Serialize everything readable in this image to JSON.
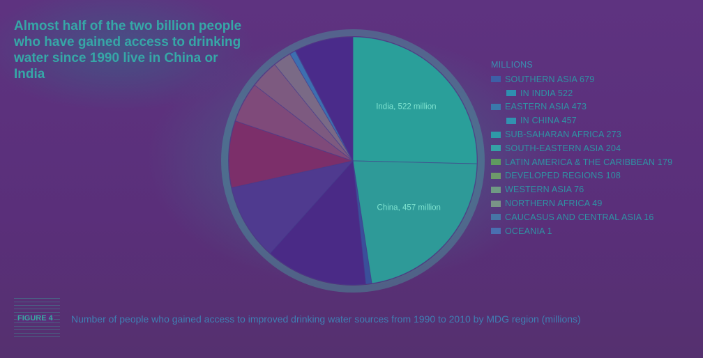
{
  "title": "Almost half of the two billion people who have gained access to drinking water since 1990 live in China or India",
  "figure_label": "FIGURE 4",
  "caption": "Number of people who gained access to improved drinking water sources from 1990 to 2010 by MDG region (millions)",
  "chart_data": {
    "type": "pie",
    "legend_title": "MILLIONS",
    "legend": [
      {
        "label": "SOUTHERN ASIA 679",
        "color": "#3d5fa6",
        "sub": false
      },
      {
        "label": "IN INDIA 522",
        "color": "#2f8fb0",
        "sub": true
      },
      {
        "label": "EASTERN ASIA 473",
        "color": "#3a78ab",
        "sub": false
      },
      {
        "label": "IN CHINA 457",
        "color": "#3192b0",
        "sub": true
      },
      {
        "label": "SUB-SAHARAN AFRICA 273",
        "color": "#2f9aa8",
        "sub": false
      },
      {
        "label": "SOUTH-EASTERN ASIA 204",
        "color": "#35a2a6",
        "sub": false
      },
      {
        "label": "LATIN AMERICA & THE CARIBBEAN 179",
        "color": "#5f9a60",
        "sub": false
      },
      {
        "label": "DEVELOPED REGIONS 108",
        "color": "#6e9a6a",
        "sub": false
      },
      {
        "label": "WESTERN ASIA 76",
        "color": "#6f9a84",
        "sub": false
      },
      {
        "label": "NORTHERN AFRICA 49",
        "color": "#7a9487",
        "sub": false
      },
      {
        "label": "CAUCASUS AND CENTRAL ASIA 16",
        "color": "#4775a6",
        "sub": false
      },
      {
        "label": "OCEANIA 1",
        "color": "#4a6fb0",
        "sub": false
      }
    ],
    "slices": [
      {
        "name": "India",
        "value": 522,
        "color": "#2a9f9a",
        "label": "India, 522 million"
      },
      {
        "name": "China",
        "value": 457,
        "color": "#2e9a98",
        "label": "China, 457 million"
      },
      {
        "name": "Eastern Asia (other)",
        "value": 16,
        "color": "#3a4f9a",
        "label": ""
      },
      {
        "name": "Sub-Saharan Africa",
        "value": 273,
        "color": "#4a2a86",
        "label": ""
      },
      {
        "name": "South-Eastern Asia",
        "value": 204,
        "color": "#4f3a8f",
        "label": ""
      },
      {
        "name": "Latin America & the Caribbean",
        "value": 179,
        "color": "#7c2f6a",
        "label": ""
      },
      {
        "name": "Developed regions",
        "value": 108,
        "color": "#7f4a7a",
        "label": ""
      },
      {
        "name": "Western Asia",
        "value": 76,
        "color": "#7d5a80",
        "label": ""
      },
      {
        "name": "Northern Africa",
        "value": 49,
        "color": "#7a6a86",
        "label": ""
      },
      {
        "name": "Caucasus and Central Asia",
        "value": 16,
        "color": "#3d6fb0",
        "label": ""
      },
      {
        "name": "Oceania",
        "value": 1,
        "color": "#4f74b3",
        "label": ""
      },
      {
        "name": "Southern Asia (other)",
        "value": 157,
        "color": "#4a2b8a",
        "label": ""
      }
    ]
  }
}
